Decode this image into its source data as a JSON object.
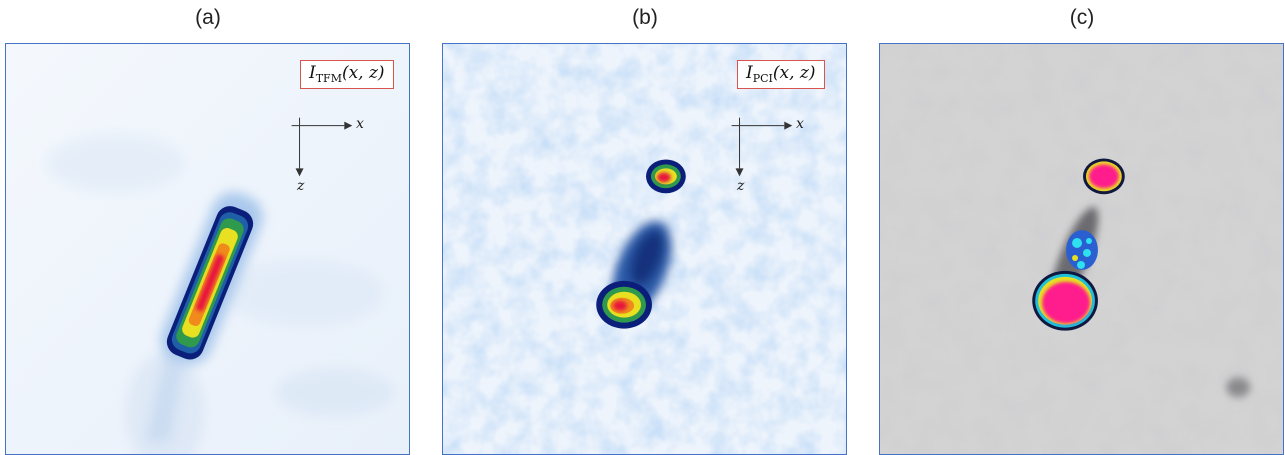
{
  "figure": {
    "panels": [
      {
        "id": "a",
        "label": "(a)",
        "formula": {
          "symbol": "I",
          "subscript": "TFM",
          "args": "(x, z)"
        },
        "axis": {
          "x_label": "x",
          "z_label": "z"
        },
        "colormap": "white-blue-green-yellow-red"
      },
      {
        "id": "b",
        "label": "(b)",
        "formula": {
          "symbol": "I",
          "subscript": "PCI",
          "args": "(x, z)"
        },
        "axis": {
          "x_label": "x",
          "z_label": "z"
        },
        "colormap": "white-blue-green-yellow-red"
      },
      {
        "id": "c",
        "label": "(c)",
        "colormap": "grey-blue-cyan-yellow-magenta"
      }
    ],
    "colors": {
      "frame": "#4472c4",
      "formula_border": "#d9534f",
      "panel_c_background": "#d3d3d3",
      "defect_core": "#e8183c",
      "defect_magenta": "#ff1a8c"
    }
  }
}
